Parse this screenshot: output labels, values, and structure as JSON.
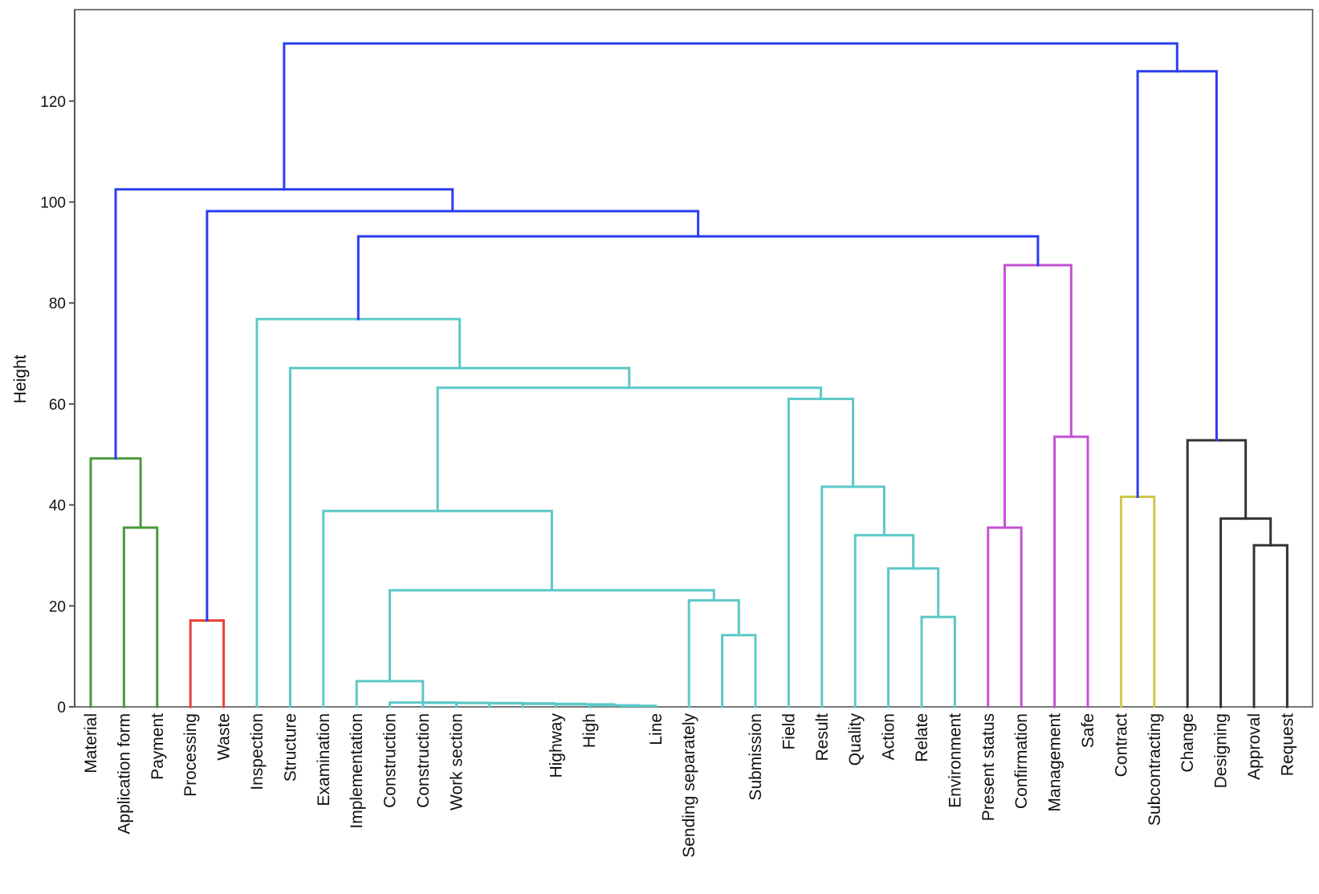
{
  "chart_data": {
    "type": "dendrogram",
    "ylabel": "Height",
    "ylim": [
      0,
      135
    ],
    "yticks": [
      0,
      20,
      40,
      60,
      80,
      100,
      120
    ],
    "grid": false,
    "colors": {
      "green": "#4a9a3a",
      "red": "#e8413a",
      "cyan": "#5cc8c8",
      "magenta": "#c452d4",
      "yellow": "#cfc84a",
      "black": "#333333",
      "blue": "#2b3ef0"
    },
    "leaves": [
      {
        "label": "Material",
        "group": "green"
      },
      {
        "label": "Application form",
        "group": "green"
      },
      {
        "label": "Payment",
        "group": "green"
      },
      {
        "label": "Processing",
        "group": "red"
      },
      {
        "label": "Waste",
        "group": "red"
      },
      {
        "label": "Inspection",
        "group": "cyan"
      },
      {
        "label": "Structure",
        "group": "cyan"
      },
      {
        "label": "Examination",
        "group": "cyan"
      },
      {
        "label": "Implementation",
        "group": "cyan"
      },
      {
        "label": "Construction",
        "group": "cyan"
      },
      {
        "label": "Construction",
        "group": "cyan"
      },
      {
        "label": "Work section",
        "group": "cyan"
      },
      {
        "label": "",
        "group": "cyan"
      },
      {
        "label": "",
        "group": "cyan"
      },
      {
        "label": "Highway",
        "group": "cyan"
      },
      {
        "label": "High",
        "group": "cyan"
      },
      {
        "label": "",
        "group": "cyan"
      },
      {
        "label": "Line",
        "group": "cyan"
      },
      {
        "label": "Sending separately",
        "group": "cyan"
      },
      {
        "label": "",
        "group": "cyan"
      },
      {
        "label": "Submission",
        "group": "cyan"
      },
      {
        "label": "Field",
        "group": "cyan"
      },
      {
        "label": "Result",
        "group": "cyan"
      },
      {
        "label": "Quality",
        "group": "cyan"
      },
      {
        "label": "Action",
        "group": "cyan"
      },
      {
        "label": "Relate",
        "group": "cyan"
      },
      {
        "label": "Environment",
        "group": "cyan"
      },
      {
        "label": "Present status",
        "group": "magenta"
      },
      {
        "label": "Confirmation",
        "group": "magenta"
      },
      {
        "label": "Management",
        "group": "magenta"
      },
      {
        "label": "Safe",
        "group": "magenta"
      },
      {
        "label": "Contract",
        "group": "yellow"
      },
      {
        "label": "Subcontracting",
        "group": "yellow"
      },
      {
        "label": "Change",
        "group": "black"
      },
      {
        "label": "Designing",
        "group": "black"
      },
      {
        "label": "Approval",
        "group": "black"
      },
      {
        "label": "Request",
        "group": "black"
      }
    ],
    "merges": [
      {
        "id": "g1",
        "children": [
          "L1",
          "L2"
        ],
        "height": 35.5,
        "color": "green"
      },
      {
        "id": "g2",
        "children": [
          "L0",
          "g1"
        ],
        "height": 49.2,
        "color": "green"
      },
      {
        "id": "r1",
        "children": [
          "L3",
          "L4"
        ],
        "height": 17.1,
        "color": "red"
      },
      {
        "id": "c1",
        "children": [
          "L16",
          "L17"
        ],
        "height": 0.2,
        "color": "cyan"
      },
      {
        "id": "c2",
        "children": [
          "L15",
          "c1"
        ],
        "height": 0.3,
        "color": "cyan"
      },
      {
        "id": "c3",
        "children": [
          "L14",
          "c2"
        ],
        "height": 0.5,
        "color": "cyan"
      },
      {
        "id": "c4",
        "children": [
          "L13",
          "c3"
        ],
        "height": 0.6,
        "color": "cyan"
      },
      {
        "id": "c5",
        "children": [
          "L12",
          "c4"
        ],
        "height": 0.7,
        "color": "cyan"
      },
      {
        "id": "c6",
        "children": [
          "L11",
          "c5"
        ],
        "height": 0.75,
        "color": "cyan"
      },
      {
        "id": "c7",
        "children": [
          "L10",
          "c6"
        ],
        "height": 0.8,
        "color": "cyan"
      },
      {
        "id": "c8",
        "children": [
          "L9",
          "c7"
        ],
        "height": 0.85,
        "color": "cyan"
      },
      {
        "id": "c9",
        "children": [
          "L8",
          "c8"
        ],
        "height": 5.1,
        "color": "cyan"
      },
      {
        "id": "c10",
        "children": [
          "L19",
          "L20"
        ],
        "height": 14.2,
        "color": "cyan"
      },
      {
        "id": "c11",
        "children": [
          "L18",
          "c10"
        ],
        "height": 21.1,
        "color": "cyan"
      },
      {
        "id": "c12",
        "children": [
          "c9",
          "c11"
        ],
        "height": 23.1,
        "color": "cyan"
      },
      {
        "id": "c13",
        "children": [
          "L7",
          "c12"
        ],
        "height": 38.8,
        "color": "cyan"
      },
      {
        "id": "c14",
        "children": [
          "L25",
          "L26"
        ],
        "height": 17.8,
        "color": "cyan"
      },
      {
        "id": "c15",
        "children": [
          "L24",
          "c14"
        ],
        "height": 27.4,
        "color": "cyan"
      },
      {
        "id": "c16",
        "children": [
          "L23",
          "c15"
        ],
        "height": 34.0,
        "color": "cyan"
      },
      {
        "id": "c17",
        "children": [
          "L22",
          "c16"
        ],
        "height": 43.6,
        "color": "cyan"
      },
      {
        "id": "c18",
        "children": [
          "L21",
          "c17"
        ],
        "height": 61.0,
        "color": "cyan"
      },
      {
        "id": "c19",
        "children": [
          "c13",
          "c18"
        ],
        "height": 63.2,
        "color": "cyan"
      },
      {
        "id": "c20",
        "children": [
          "L6",
          "c19"
        ],
        "height": 67.1,
        "color": "cyan"
      },
      {
        "id": "c21",
        "children": [
          "L5",
          "c20"
        ],
        "height": 76.8,
        "color": "cyan"
      },
      {
        "id": "m1",
        "children": [
          "L27",
          "L28"
        ],
        "height": 35.5,
        "color": "magenta"
      },
      {
        "id": "m2",
        "children": [
          "L29",
          "L30"
        ],
        "height": 53.5,
        "color": "magenta"
      },
      {
        "id": "m3",
        "children": [
          "m1",
          "m2"
        ],
        "height": 87.5,
        "color": "magenta"
      },
      {
        "id": "b1",
        "children": [
          "c21",
          "m3"
        ],
        "height": 93.2,
        "color": "blue"
      },
      {
        "id": "b2",
        "children": [
          "r1",
          "b1"
        ],
        "height": 98.2,
        "color": "blue"
      },
      {
        "id": "b3",
        "children": [
          "g2",
          "b2"
        ],
        "height": 102.5,
        "color": "blue"
      },
      {
        "id": "y1",
        "children": [
          "L31",
          "L32"
        ],
        "height": 41.6,
        "color": "yellow"
      },
      {
        "id": "k1",
        "children": [
          "L35",
          "L36"
        ],
        "height": 32.0,
        "color": "black"
      },
      {
        "id": "k2",
        "children": [
          "L34",
          "k1"
        ],
        "height": 37.3,
        "color": "black"
      },
      {
        "id": "k3",
        "children": [
          "L33",
          "k2"
        ],
        "height": 52.8,
        "color": "black"
      },
      {
        "id": "b4",
        "children": [
          "y1",
          "k3"
        ],
        "height": 125.9,
        "color": "blue"
      },
      {
        "id": "b5",
        "children": [
          "b3",
          "b4"
        ],
        "height": 131.4,
        "color": "blue"
      }
    ]
  }
}
